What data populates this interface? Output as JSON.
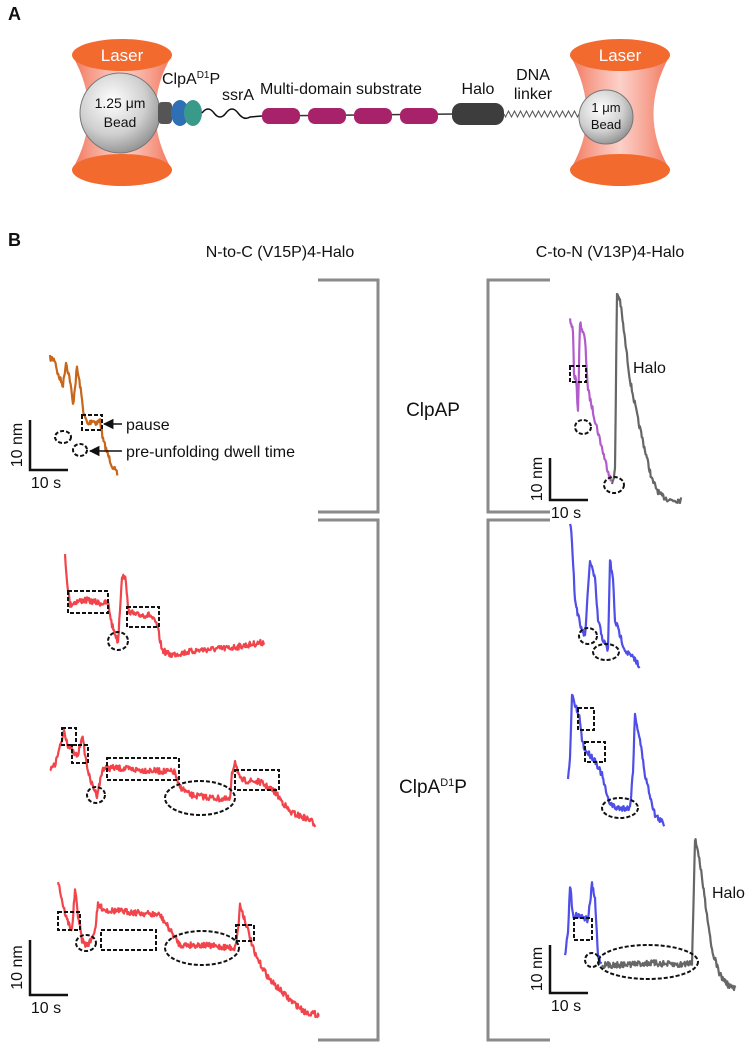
{
  "panel_a": {
    "label": "A",
    "laser_left": "Laser",
    "laser_right": "Laser",
    "bead_left": {
      "size": "1.25 μm",
      "label": "Bead"
    },
    "bead_right": {
      "size": "1 μm",
      "label": "Bead"
    },
    "enzyme": {
      "name": "ClpA",
      "superscript": "D1",
      "suffix": "P"
    },
    "tag": "ssrA",
    "substrate": "Multi-domain substrate",
    "halo": "Halo",
    "linker": [
      "DNA",
      "linker"
    ]
  },
  "panel_b": {
    "label": "B",
    "columns": [
      "N-to-C (V15P)4-Halo",
      "C-to-N (V13P)4-Halo"
    ],
    "rows": {
      "clpap": "ClpAP",
      "clpa_d1p": {
        "name": "ClpA",
        "superscript": "D1",
        "suffix": "P"
      }
    },
    "annotations": {
      "pause": "pause",
      "dwell": "pre-unfolding dwell time",
      "halo_top": "Halo",
      "halo_bottom": "Halo"
    },
    "scale_bars": [
      {
        "y": "10 nm",
        "x": "10 s"
      },
      {
        "y": "10 nm",
        "x": "10 s"
      },
      {
        "y": "10 nm",
        "x": "10 s"
      },
      {
        "y": "10 nm",
        "x": "10 s"
      }
    ]
  }
}
